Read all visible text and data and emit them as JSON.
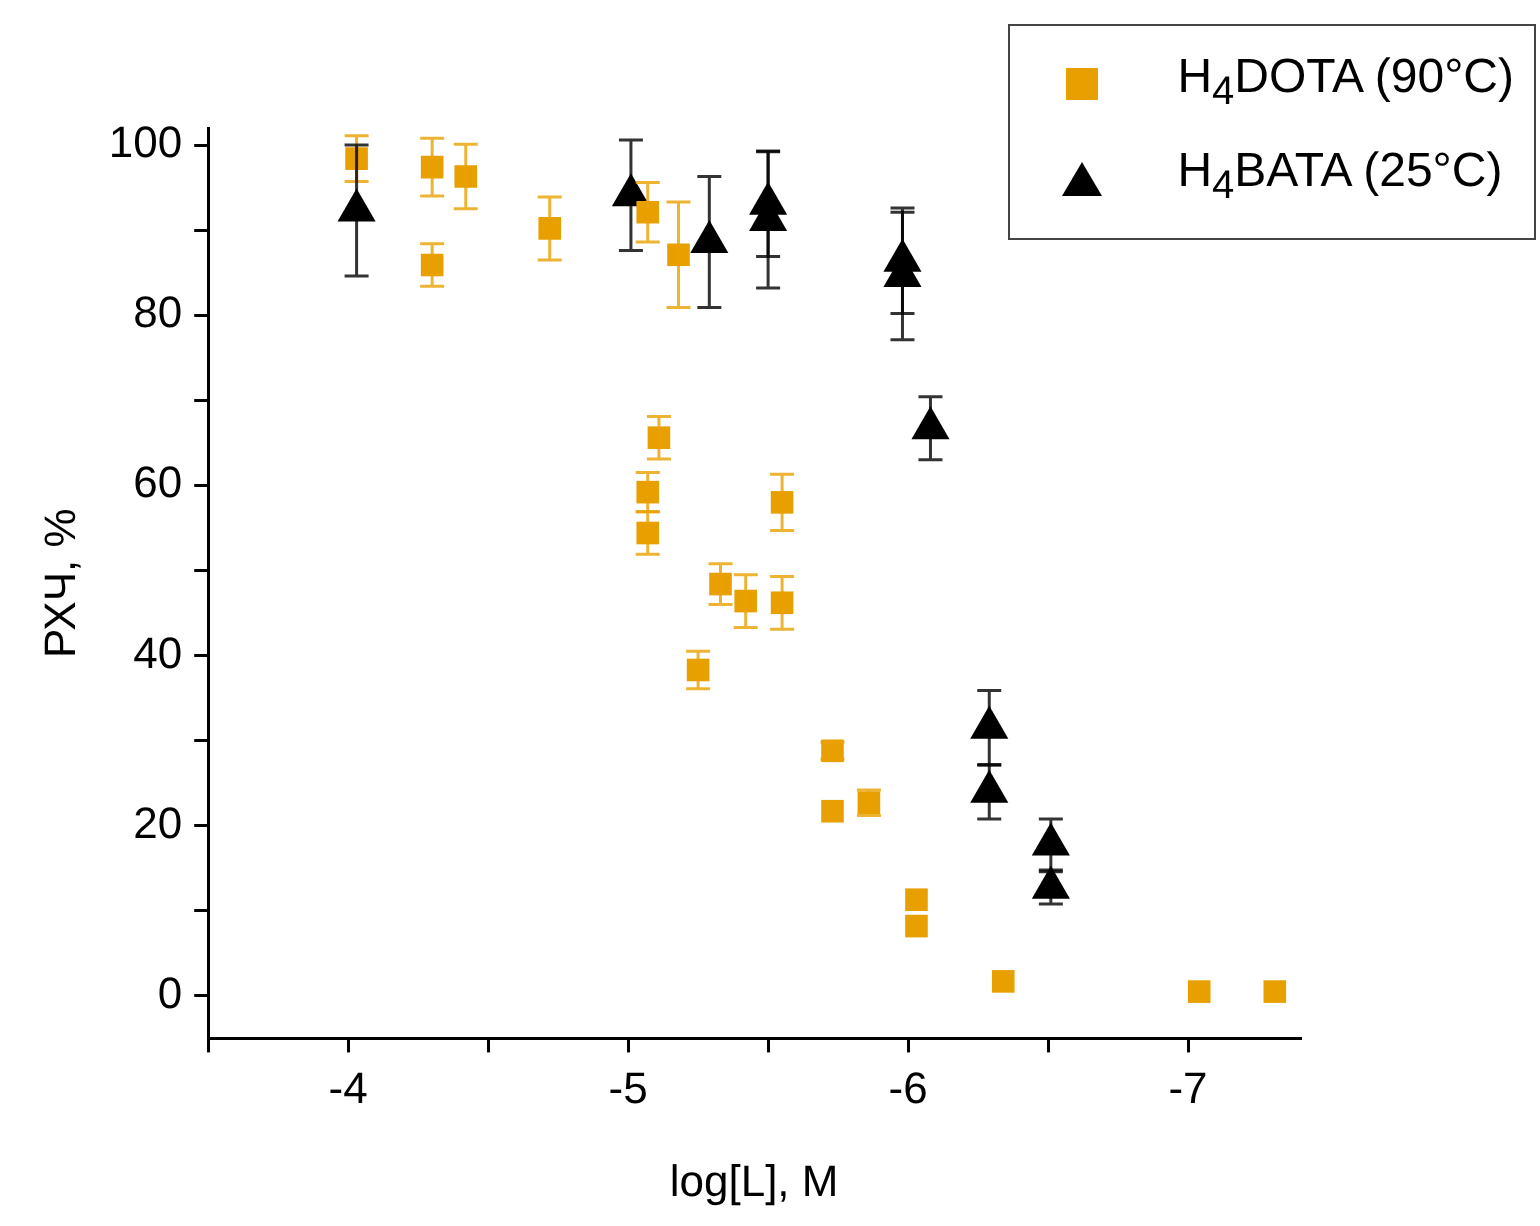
{
  "chart_data": {
    "type": "scatter",
    "xlabel": "log[L], M",
    "ylabel": "РХЧ, %",
    "xlim": [
      -3.5,
      -7.4
    ],
    "ylim": [
      -5,
      102
    ],
    "xticks": [
      {
        "value": -3.5,
        "label": null
      },
      -4,
      {
        "value": -4.5,
        "label": null
      },
      -5,
      {
        "value": -5.5,
        "label": null
      },
      -6,
      {
        "value": -6.5,
        "label": null
      },
      -7
    ],
    "yticks": [
      0,
      {
        "value": 10,
        "label": null
      },
      20,
      {
        "value": 30,
        "label": null
      },
      40,
      {
        "value": 50,
        "label": null
      },
      60,
      {
        "value": 70,
        "label": null
      },
      80,
      {
        "value": 90,
        "label": null
      },
      100
    ],
    "grid": false,
    "legend": "top right",
    "series": [
      {
        "name": "H$_{4}$DOTA (90°C)",
        "color": "#e8a000",
        "marker": "square",
        "x": [
          -4.03,
          -4.3,
          -4.42,
          -4.3,
          -4.72,
          -5.07,
          -5.18,
          -5.11,
          -5.07,
          -5.07,
          -5.55,
          -5.33,
          -5.42,
          -5.55,
          -5.25,
          -5.73,
          -5.73,
          -5.86,
          -6.03,
          -6.03,
          -6.34,
          -7.04,
          -7.31
        ],
        "values": [
          98.4,
          97.4,
          96.3,
          85.9,
          90.2,
          92.1,
          87.1,
          65.6,
          59.2,
          54.4,
          58.0,
          48.4,
          46.4,
          46.2,
          38.3,
          28.8,
          21.7,
          22.7,
          11.3,
          8.2,
          1.7,
          0.5,
          0.5
        ],
        "errors": [
          2.7,
          3.4,
          3.8,
          2.5,
          3.7,
          3.5,
          6.2,
          2.5,
          2.3,
          2.5,
          3.3,
          2.4,
          3.1,
          3.1,
          2.2,
          1,
          null,
          1.5,
          null,
          null,
          null,
          null,
          null
        ]
      },
      {
        "name": "H$_{4}$BATA (25°C)",
        "color": "#000000",
        "marker": "triangle",
        "x": [
          -4.03,
          -5.01,
          -5.29,
          -5.5,
          -5.5,
          -5.98,
          -5.98,
          -6.08,
          -6.29,
          -6.29,
          -6.51,
          -6.51
        ],
        "values": [
          92.3,
          94.1,
          88.6,
          93.1,
          91.2,
          86.4,
          84.6,
          66.7,
          31.5,
          24.0,
          17.8,
          12.7
        ],
        "errors": [
          7.7,
          6.5,
          7.7,
          6.2,
          8.0,
          6.2,
          7.5,
          3.7,
          4.4,
          3.2,
          3,
          1.9
        ]
      }
    ]
  }
}
